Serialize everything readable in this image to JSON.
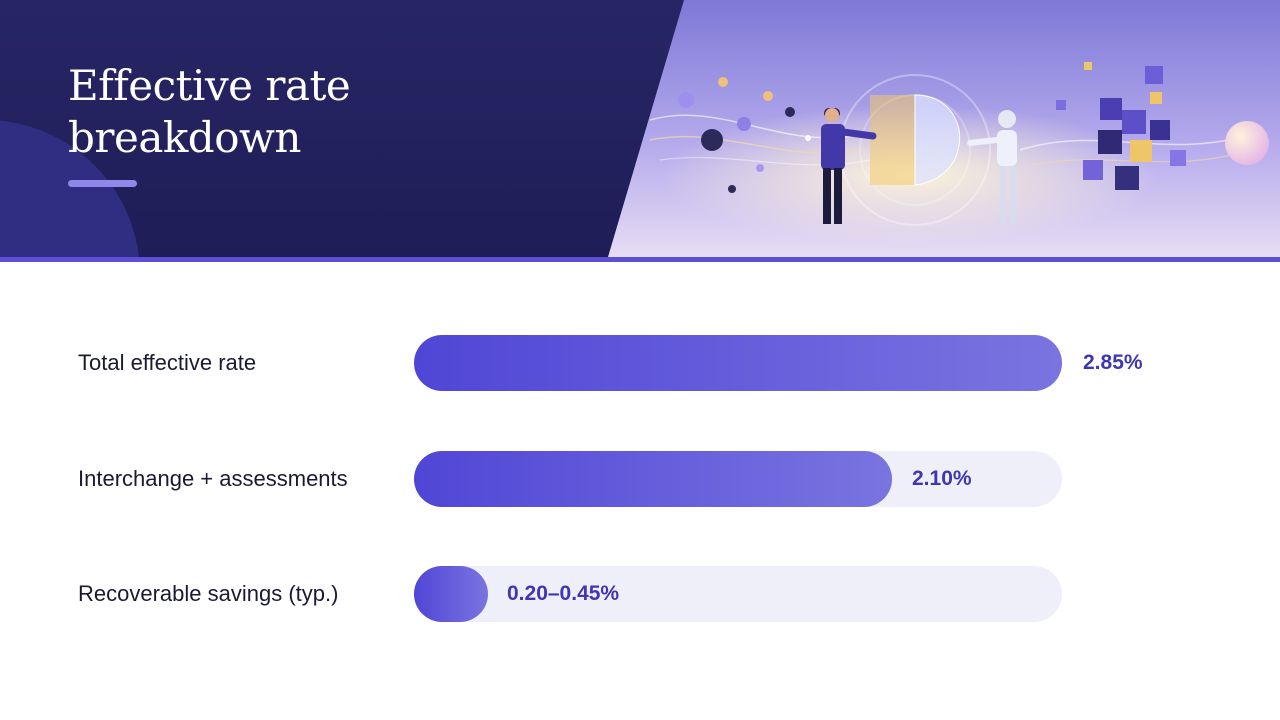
{
  "slide": {
    "title_lines": [
      "Effective rate",
      "breakdown"
    ]
  },
  "hero_image": {
    "description_icon": "person-and-robot-ai-illustration-icon"
  },
  "rates": {
    "items": [
      {
        "label": "Total effective rate",
        "value_text": "2.85%",
        "fill_fraction": 1.0
      },
      {
        "label": "Interchange + assessments",
        "value_text": "2.10%",
        "fill_fraction": 0.737
      },
      {
        "label": "Recoverable savings (typ.)",
        "value_text": "0.20–0.45%",
        "fill_fraction": 0.114
      }
    ]
  },
  "colors": {
    "header_bg": "#272665",
    "accent": "#5b4fd6",
    "bar_start": "#5046d6",
    "bar_end": "#7a74e0",
    "track": "#efeff9",
    "value_text": "#3f36b3"
  }
}
